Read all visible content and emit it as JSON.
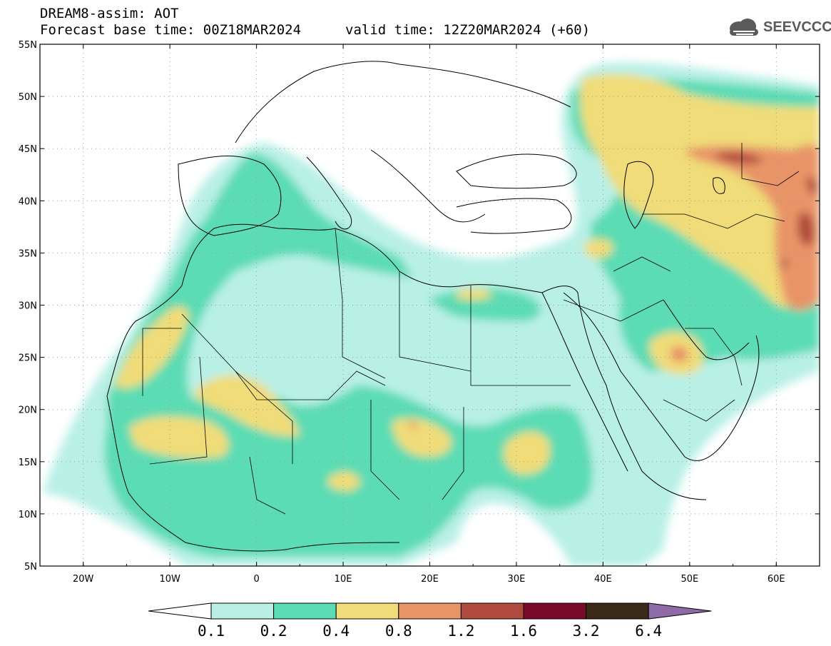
{
  "header": {
    "title": "DREAM8-assim: AOT",
    "base_time": "Forecast base time: 00Z18MAR2024",
    "valid_time": "valid time: 12Z20MAR2024 (+60)"
  },
  "logo": {
    "text": "SEEVCCC",
    "icon": "cloud-logo-icon"
  },
  "map": {
    "lat_range": [
      5,
      55
    ],
    "lon_range": [
      -25,
      65
    ],
    "lat_ticks": [
      "5N",
      "10N",
      "15N",
      "20N",
      "25N",
      "30N",
      "35N",
      "40N",
      "45N",
      "50N",
      "55N"
    ],
    "lon_ticks": [
      "20W",
      "10W",
      "0",
      "10E",
      "20E",
      "30E",
      "40E",
      "50E",
      "60E"
    ],
    "grid": "dotted"
  },
  "colorbar": {
    "levels": [
      "0.1",
      "0.2",
      "0.4",
      "0.8",
      "1.2",
      "1.6",
      "3.2",
      "6.4"
    ],
    "colors": [
      "#b9f0e6",
      "#5cdcb4",
      "#f0dc78",
      "#e89468",
      "#b04a3e",
      "#7a0a2a",
      "#3a2a18",
      "#8e6aa6"
    ]
  }
}
